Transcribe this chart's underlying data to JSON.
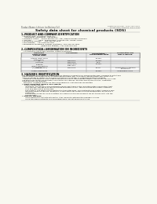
{
  "bg_color": "#f8f8f0",
  "header_top_left": "Product Name: Lithium Ion Battery Cell",
  "header_top_right": "Substance Number: 199X-499-00010\nEstablished / Revision: Dec.7.2010",
  "title": "Safety data sheet for chemical products (SDS)",
  "section1_title": "1. PRODUCT AND COMPANY IDENTIFICATION",
  "section1_lines": [
    " • Product name: Lithium Ion Battery Cell",
    " • Product code: Cylindrical type cell",
    "      INR18650J, INR18650L, INR18650A",
    " • Company name:    Sanyo Electric Co., Ltd., Mobile Energy Company",
    " • Address:            2001  Kamiyashiro, Sumoto-City, Hyogo, Japan",
    " • Telephone number:    +81-799-26-4111",
    " • Fax number:    +81-799-26-4125",
    " • Emergency telephone number (daytime): +81-799-26-2662",
    "                                  (Night and holiday): +81-799-26-2101"
  ],
  "section2_title": "2. COMPOSITION / INFORMATION ON INGREDIENTS",
  "section2_intro": " • Substance or preparation: Preparation",
  "section2_sub": "   • Information about the chemical nature of product:",
  "table_headers": [
    "Component\nchemical name\nSeveral Name",
    "CAS number",
    "Concentration /\nConcentration range",
    "Classification and\nhazard labeling"
  ],
  "table_rows": [
    [
      "Lithium cobalt oxide\n(LiMnCoPO4)",
      "-",
      "30-60%",
      "-"
    ],
    [
      "Iron",
      "7439-89-6",
      "10-20%",
      "-"
    ],
    [
      "Aluminum",
      "7429-90-5",
      "2-5%",
      "-"
    ],
    [
      "Graphite\n(Kind of graphite-1)\n(Al/No graphite-1)",
      "77782-42-5\n7782-44-7",
      "10-20%",
      "-"
    ],
    [
      "Copper",
      "7440-50-8",
      "5-15%",
      "Sensitization of the skin\ngroup No.2"
    ],
    [
      "Organic electrolyte",
      "-",
      "10-20%",
      "Inflammable liquid"
    ]
  ],
  "section3_title": "3. HAZARDS IDENTIFICATION",
  "section3_para1": [
    "  For the battery cell, chemical substances are stored in a hermetically sealed metal case, designed to withstand",
    "  temperatures and pressures encountered during normal use. As a result, during normal use, there is no",
    "  physical danger of ignition or explosion and there is no danger of hazardous materials leakage.",
    "    However, if exposed to a fire, added mechanical shocks, decomposed, written-lens without dry miss-use,",
    "  the gas inside cannot be operated. The battery cell case will be breached at fire-particles. hazardous",
    "  materials may be released.",
    "    Moreover, if heated strongly by the surrounding fire, soot gas may be emitted."
  ],
  "section3_hazard_title": " • Most important hazard and effects:",
  "section3_health": [
    "     Human health effects:",
    "       Inhalation: The above of the electrolyte has an anesthesia action and stimulates a respiratory tract.",
    "       Skin contact: The above of the electrolyte stimulates a skin. The electrolyte skin contact causes a",
    "       sore and stimulation on the skin.",
    "       Eye contact: The above of the electrolyte stimulates eyes. The electrolyte eye contact causes a sore",
    "       and stimulation on the eye. Especially, a substance that causes a strong inflammation of the eye is",
    "       contained.",
    "       Environmental effects: Since a battery cell remains in the environment, do not throw out it into the",
    "       environment."
  ],
  "section3_specific_title": " • Specific hazards:",
  "section3_specific": [
    "       If the electrolyte contacts with water, it will generate detrimental hydrogen fluoride.",
    "       Since the used electrolyte is inflammable liquid, do not bring close to fire."
  ]
}
